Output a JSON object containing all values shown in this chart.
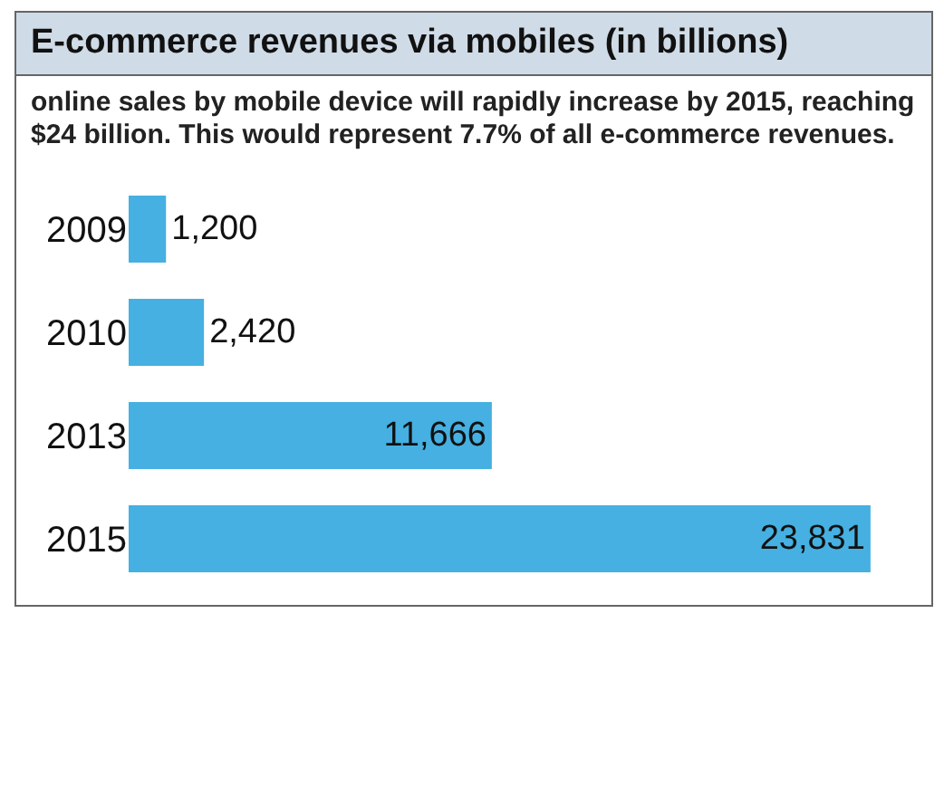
{
  "chart_data": {
    "type": "bar",
    "orientation": "horizontal",
    "title": "E-commerce revenues via mobiles (in billions)",
    "subtitle": "online sales by mobile device will rapidly increase by 2015, reaching $24 billion. This would represent 7.7% of all e-commerce revenues.",
    "categories": [
      "2009",
      "2010",
      "2013",
      "2015"
    ],
    "values": [
      1200,
      2420,
      11666,
      23831
    ],
    "value_labels": [
      "1,200",
      "2,420",
      "11,666",
      "23,831"
    ],
    "color": "#45b0e1"
  }
}
